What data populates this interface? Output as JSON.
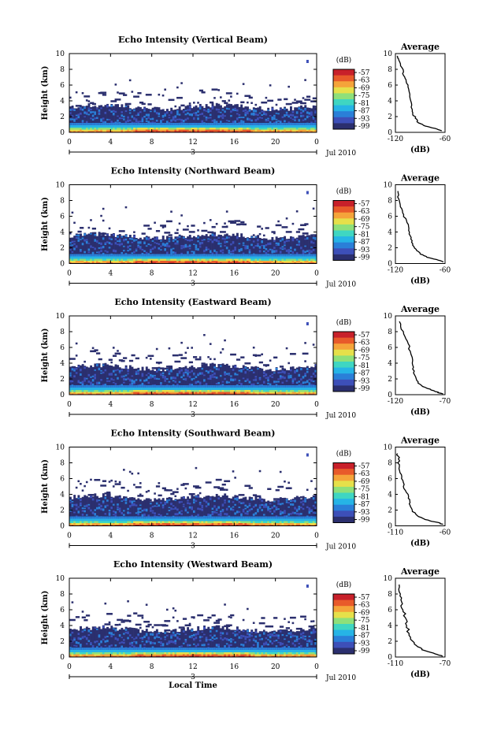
{
  "chart_data": [
    {
      "type": "heatmap",
      "title": "Echo Intensity (Vertical Beam)",
      "ylabel": "Height (km)",
      "xticks": [
        "0",
        "4",
        "8",
        "12",
        "16",
        "20",
        "0"
      ],
      "yticks": [
        "0",
        "2",
        "4",
        "6",
        "8",
        "10"
      ],
      "xlim": [
        0,
        24
      ],
      "ylim": [
        0,
        10
      ],
      "date_marker": "3",
      "date_label": "Jul 2010",
      "colorbar": {
        "label": "(dB)",
        "ticks": [
          "-57",
          "-63",
          "-69",
          "-75",
          "-81",
          "-87",
          "-93",
          "-99"
        ],
        "range": [
          -99,
          -57
        ]
      },
      "echo_top_km": 3.2,
      "average": {
        "title": "Average",
        "xlabel": "(dB)",
        "xticks": [
          "-120",
          "-60"
        ],
        "xlim": [
          -120,
          -60
        ],
        "profile": [
          [
            -64,
            0.2
          ],
          [
            -72,
            0.5
          ],
          [
            -84,
            0.8
          ],
          [
            -92,
            1.2
          ],
          [
            -96,
            1.8
          ],
          [
            -99,
            2.5
          ],
          [
            -101,
            3.2
          ],
          [
            -102,
            4.2
          ],
          [
            -104,
            5.5
          ],
          [
            -107,
            6.5
          ],
          [
            -110,
            7.2
          ],
          [
            -112,
            8.2
          ],
          [
            -116,
            9.2
          ],
          [
            -118,
            9.7
          ]
        ]
      }
    },
    {
      "type": "heatmap",
      "title": "Echo Intensity (Northward Beam)",
      "ylabel": "Height (km)",
      "xticks": [
        "0",
        "4",
        "8",
        "12",
        "16",
        "20",
        "0"
      ],
      "yticks": [
        "0",
        "2",
        "4",
        "6",
        "8",
        "10"
      ],
      "xlim": [
        0,
        24
      ],
      "ylim": [
        0,
        10
      ],
      "date_marker": "3",
      "date_label": "Jul 2010",
      "colorbar": {
        "label": "(dB)",
        "ticks": [
          "-57",
          "-63",
          "-69",
          "-75",
          "-81",
          "-87",
          "-93",
          "-99"
        ],
        "range": [
          -99,
          -57
        ]
      },
      "echo_top_km": 3.5,
      "average": {
        "title": "Average",
        "xlabel": "(dB)",
        "xticks": [
          "-120",
          "-60"
        ],
        "xlim": [
          -120,
          -60
        ],
        "profile": [
          [
            -62,
            0.2
          ],
          [
            -70,
            0.5
          ],
          [
            -82,
            0.8
          ],
          [
            -90,
            1.2
          ],
          [
            -95,
            1.8
          ],
          [
            -99,
            2.5
          ],
          [
            -101,
            3.3
          ],
          [
            -104,
            4.2
          ],
          [
            -106,
            5.2
          ],
          [
            -110,
            6.2
          ],
          [
            -114,
            7.2
          ],
          [
            -116,
            8.2
          ],
          [
            -117,
            9.2
          ]
        ]
      }
    },
    {
      "type": "heatmap",
      "title": "Echo Intensity (Eastward Beam)",
      "ylabel": "Height (km)",
      "xticks": [
        "0",
        "4",
        "8",
        "12",
        "16",
        "20",
        "0"
      ],
      "yticks": [
        "0",
        "2",
        "4",
        "6",
        "8",
        "10"
      ],
      "xlim": [
        0,
        24
      ],
      "ylim": [
        0,
        10
      ],
      "date_marker": "3",
      "date_label": "Jul 2010",
      "colorbar": {
        "label": "(dB)",
        "ticks": [
          "-57",
          "-63",
          "-69",
          "-75",
          "-81",
          "-87",
          "-93",
          "-99"
        ],
        "range": [
          -99,
          -57
        ]
      },
      "echo_top_km": 3.5,
      "average": {
        "title": "Average",
        "xlabel": "(dB)",
        "xticks": [
          "-120",
          "-70"
        ],
        "xlim": [
          -120,
          -70
        ],
        "profile": [
          [
            -72,
            0.1
          ],
          [
            -80,
            0.4
          ],
          [
            -88,
            0.8
          ],
          [
            -95,
            1.3
          ],
          [
            -99,
            2.0
          ],
          [
            -101,
            3.0
          ],
          [
            -103,
            4.0
          ],
          [
            -105,
            5.5
          ],
          [
            -108,
            6.8
          ],
          [
            -112,
            8.0
          ],
          [
            -116,
            9.3
          ]
        ]
      }
    },
    {
      "type": "heatmap",
      "title": "Echo Intensity (Southward Beam)",
      "ylabel": "Height (km)",
      "xticks": [
        "0",
        "4",
        "8",
        "12",
        "16",
        "20",
        "0"
      ],
      "yticks": [
        "0",
        "2",
        "4",
        "6",
        "8",
        "10"
      ],
      "xlim": [
        0,
        24
      ],
      "ylim": [
        0,
        10
      ],
      "date_marker": "3",
      "date_label": "Jul 2010",
      "colorbar": {
        "label": "(dB)",
        "ticks": [
          "-57",
          "-63",
          "-69",
          "-75",
          "-81",
          "-87",
          "-93",
          "-99"
        ],
        "range": [
          -99,
          -57
        ]
      },
      "echo_top_km": 3.6,
      "average": {
        "title": "Average",
        "xlabel": "(dB)",
        "xticks": [
          "-110",
          "-60"
        ],
        "xlim": [
          -110,
          -60
        ],
        "profile": [
          [
            -62,
            0.2
          ],
          [
            -70,
            0.5
          ],
          [
            -80,
            0.8
          ],
          [
            -88,
            1.3
          ],
          [
            -93,
            2.0
          ],
          [
            -96,
            2.8
          ],
          [
            -97,
            3.5
          ],
          [
            -100,
            4.5
          ],
          [
            -102,
            5.5
          ],
          [
            -104,
            6.5
          ],
          [
            -106,
            7.5
          ],
          [
            -107,
            8.5
          ],
          [
            -108,
            9.2
          ]
        ]
      }
    },
    {
      "type": "heatmap",
      "title": "Echo Intensity (Westward Beam)",
      "ylabel": "Height (km)",
      "xticks": [
        "0",
        "4",
        "8",
        "12",
        "16",
        "20",
        "0"
      ],
      "yticks": [
        "0",
        "2",
        "4",
        "6",
        "8",
        "10"
      ],
      "xlim": [
        0,
        24
      ],
      "ylim": [
        0,
        10
      ],
      "date_marker": "3",
      "date_label": "Jul 2010",
      "x_axis_label": "Local Time",
      "colorbar": {
        "label": "(dB)",
        "ticks": [
          "-57",
          "-63",
          "-69",
          "-75",
          "-81",
          "-87",
          "-93",
          "-99"
        ],
        "range": [
          -99,
          -57
        ]
      },
      "echo_top_km": 3.5,
      "average": {
        "title": "Average",
        "xlabel": "(dB)",
        "xticks": [
          "-110",
          "-70"
        ],
        "xlim": [
          -110,
          -70
        ],
        "profile": [
          [
            -72,
            0.1
          ],
          [
            -78,
            0.4
          ],
          [
            -86,
            0.8
          ],
          [
            -92,
            1.3
          ],
          [
            -96,
            2.0
          ],
          [
            -99,
            3.0
          ],
          [
            -101,
            4.0
          ],
          [
            -102,
            5.0
          ],
          [
            -104,
            6.0
          ],
          [
            -105,
            7.0
          ],
          [
            -106,
            8.0
          ],
          [
            -107,
            9.2
          ]
        ]
      }
    }
  ],
  "colors": {
    "scale": [
      "#2b2f6e",
      "#3d4fb8",
      "#2a7fd8",
      "#26b4e6",
      "#3fd6c2",
      "#8ee07a",
      "#e6e04a",
      "#f5a43a",
      "#e85a2a",
      "#c8202a"
    ]
  }
}
